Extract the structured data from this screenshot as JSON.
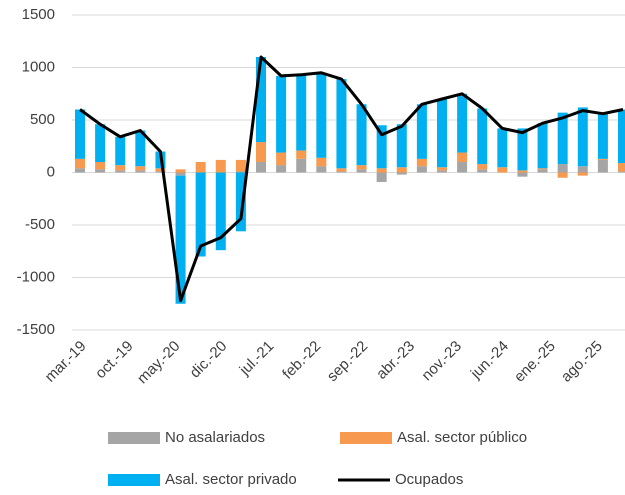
{
  "chart_data": {
    "type": "bar",
    "x": [
      "2019-03",
      "2019-06",
      "2019-09",
      "2019-12",
      "2020-03",
      "2020-06",
      "2020-09",
      "2020-12",
      "2021-03",
      "2021-06",
      "2021-09",
      "2021-12",
      "2022-03",
      "2022-06",
      "2022-09",
      "2022-12",
      "2023-03",
      "2023-06",
      "2023-09",
      "2023-12",
      "2024-03",
      "2024-06",
      "2024-09",
      "2024-12",
      "2025-03",
      "2025-06",
      "2025-09",
      "2025-12"
    ],
    "xlim": [
      "2019-03",
      "2025-12"
    ],
    "xticks": [
      {
        "value": "2019-03",
        "label": "mar.-19"
      },
      {
        "value": "2019-10",
        "label": "oct.-19"
      },
      {
        "value": "2020-05",
        "label": "may.-20"
      },
      {
        "value": "2020-12",
        "label": "dic.-20"
      },
      {
        "value": "2021-07",
        "label": "jul.-21"
      },
      {
        "value": "2022-02",
        "label": "feb.-22"
      },
      {
        "value": "2022-09",
        "label": "sep.-22"
      },
      {
        "value": "2023-04",
        "label": "abr.-23"
      },
      {
        "value": "2023-11",
        "label": "nov.-23"
      },
      {
        "value": "2024-06",
        "label": "jun.-24"
      },
      {
        "value": "2025-01",
        "label": "ene.-25"
      },
      {
        "value": "2025-08",
        "label": "ago.-25"
      }
    ],
    "ylim": [
      -1500,
      1500
    ],
    "yticks": [
      -1500,
      -1000,
      -500,
      0,
      500,
      1000,
      1500
    ],
    "grid": true,
    "stacked": true,
    "series": [
      {
        "name": "No asalariados",
        "color": "#a5a5a5",
        "values": [
          40,
          30,
          20,
          20,
          10,
          -30,
          0,
          0,
          10,
          100,
          70,
          130,
          60,
          10,
          30,
          -90,
          -20,
          60,
          20,
          100,
          30,
          0,
          -40,
          30,
          80,
          60,
          120,
          10
        ]
      },
      {
        "name": "Asal. sector público",
        "color": "#f79a4f",
        "values": [
          90,
          70,
          50,
          40,
          30,
          30,
          100,
          120,
          110,
          190,
          120,
          80,
          80,
          30,
          40,
          40,
          50,
          70,
          30,
          90,
          50,
          50,
          20,
          10,
          -50,
          -30,
          10,
          80
        ]
      },
      {
        "name": "Asal. sector privado",
        "color": "#00b0f0",
        "values": [
          470,
          360,
          270,
          340,
          160,
          -1220,
          -800,
          -740,
          -560,
          810,
          730,
          720,
          810,
          850,
          580,
          410,
          410,
          520,
          650,
          560,
          530,
          370,
          400,
          430,
          490,
          560,
          430,
          510
        ]
      },
      {
        "name": "Ocupados",
        "type": "line",
        "color": "#000000",
        "values": [
          600,
          460,
          340,
          400,
          200,
          -1220,
          -700,
          -620,
          -440,
          1100,
          920,
          930,
          950,
          890,
          650,
          360,
          440,
          650,
          700,
          750,
          610,
          420,
          380,
          470,
          520,
          590,
          560,
          600
        ]
      }
    ]
  }
}
